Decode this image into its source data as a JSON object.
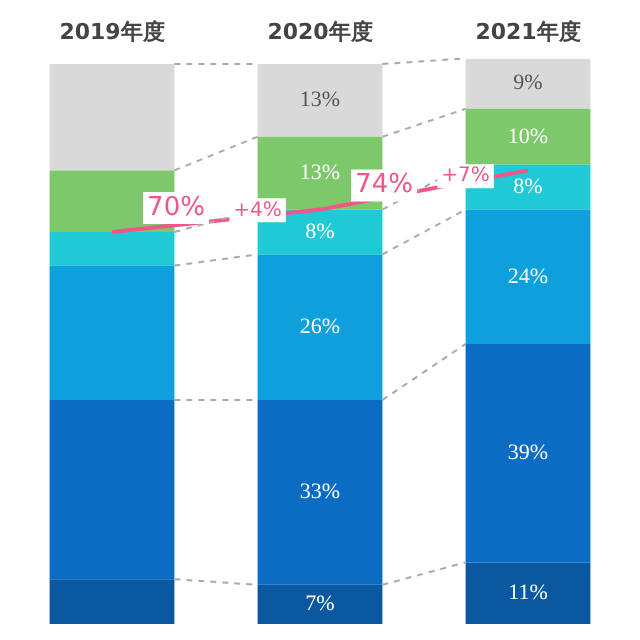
{
  "chart_data": {
    "type": "bar",
    "stacked": true,
    "categories": [
      "2019年度",
      "2020年度",
      "2021年度"
    ],
    "series": [
      {
        "color": "#0a58a0",
        "values": [
          8,
          7,
          11
        ],
        "value_labels": [
          null,
          "7%",
          "11%"
        ]
      },
      {
        "color": "#0b6cc4",
        "values": [
          32,
          33,
          39
        ],
        "value_labels": [
          null,
          "33%",
          "39%"
        ]
      },
      {
        "color": "#0ea0dd",
        "values": [
          24,
          26,
          24
        ],
        "value_labels": [
          null,
          "26%",
          "24%"
        ]
      },
      {
        "color": "#1fc9d6",
        "values": [
          6,
          8,
          8
        ],
        "value_labels": [
          null,
          "8%",
          "8%"
        ]
      },
      {
        "color": "#7cc86a",
        "values": [
          11,
          13,
          10
        ],
        "value_labels": [
          null,
          "13%",
          "10%"
        ]
      },
      {
        "color": "#d9d9d9",
        "values": [
          19,
          13,
          9
        ],
        "value_labels": [
          null,
          "13%",
          "9%"
        ]
      },
      {
        "type": "line",
        "color": "#f0568a",
        "values": [
          70,
          74,
          81
        ],
        "value_labels": [
          "70%",
          "74%",
          null
        ]
      }
    ],
    "annotations": [
      "+4%",
      "+7%"
    ],
    "grid": false,
    "legend": false
  }
}
